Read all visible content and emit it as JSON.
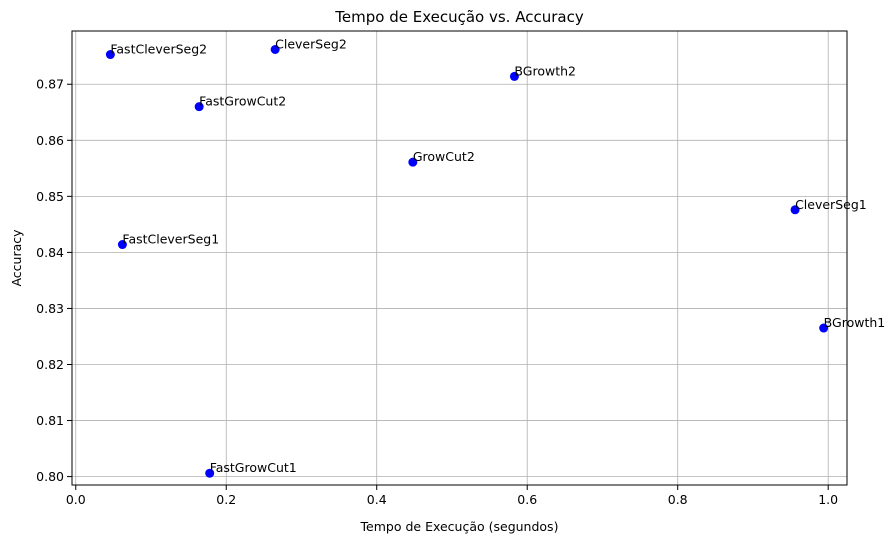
{
  "chart_data": {
    "type": "scatter",
    "title": "Tempo de Execução vs. Accuracy",
    "xlabel": "Tempo de Execução (segundos)",
    "ylabel": "Accuracy",
    "xlim": [
      -0.005,
      1.025
    ],
    "ylim": [
      0.7985,
      0.8795
    ],
    "xticks": [
      0.0,
      0.2,
      0.4,
      0.6,
      0.8,
      1.0
    ],
    "xtick_labels": [
      "0.0",
      "0.2",
      "0.4",
      "0.6",
      "0.8",
      "1.0"
    ],
    "yticks": [
      0.8,
      0.81,
      0.82,
      0.83,
      0.84,
      0.85,
      0.86,
      0.87
    ],
    "ytick_labels": [
      "0.80",
      "0.81",
      "0.82",
      "0.83",
      "0.84",
      "0.85",
      "0.86",
      "0.87"
    ],
    "grid": true,
    "marker_color": "#0000ff",
    "points": [
      {
        "label": "FastCleverSeg2",
        "x": 0.046,
        "y": 0.8753
      },
      {
        "label": "CleverSeg2",
        "x": 0.265,
        "y": 0.8762
      },
      {
        "label": "BGrowth2",
        "x": 0.583,
        "y": 0.8714
      },
      {
        "label": "FastGrowCut2",
        "x": 0.164,
        "y": 0.866
      },
      {
        "label": "GrowCut2",
        "x": 0.448,
        "y": 0.8561
      },
      {
        "label": "CleverSeg1",
        "x": 0.956,
        "y": 0.8476
      },
      {
        "label": "FastCleverSeg1",
        "x": 0.062,
        "y": 0.8414
      },
      {
        "label": "BGrowth1",
        "x": 0.994,
        "y": 0.8265
      },
      {
        "label": "FastGrowCut1",
        "x": 0.178,
        "y": 0.8006
      }
    ]
  }
}
